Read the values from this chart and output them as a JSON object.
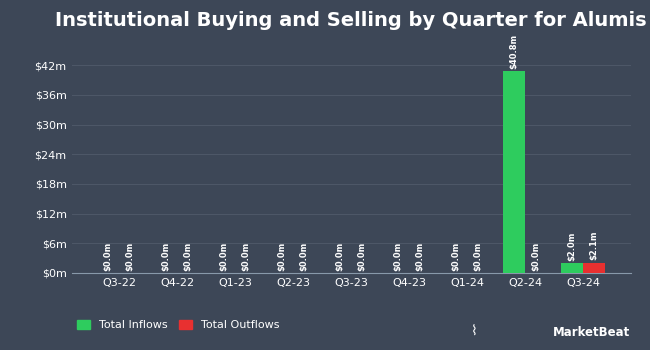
{
  "title": "Institutional Buying and Selling by Quarter for Alumis",
  "quarters": [
    "Q3-22",
    "Q4-22",
    "Q1-23",
    "Q2-23",
    "Q3-23",
    "Q4-23",
    "Q1-24",
    "Q2-24",
    "Q3-24"
  ],
  "inflows": [
    0.0,
    0.0,
    0.0,
    0.0,
    0.0,
    0.0,
    0.0,
    40.8,
    2.0
  ],
  "outflows": [
    0.0,
    0.0,
    0.0,
    0.0,
    0.0,
    0.0,
    0.0,
    0.0,
    2.1
  ],
  "inflow_labels": [
    "$0.0m",
    "$0.0m",
    "$0.0m",
    "$0.0m",
    "$0.0m",
    "$0.0m",
    "$0.0m",
    "$40.8m",
    "$2.0m"
  ],
  "outflow_labels": [
    "$0.0m",
    "$0.0m",
    "$0.0m",
    "$0.0m",
    "$0.0m",
    "$0.0m",
    "$0.0m",
    "$0.0m",
    "$2.1m"
  ],
  "inflow_color": "#2ecc5e",
  "outflow_color": "#e83030",
  "bg_color": "#3d4757",
  "plot_bg_color": "#3d4757",
  "grid_color": "#4d5767",
  "text_color": "#ffffff",
  "axis_line_color": "#8899aa",
  "ytick_labels": [
    "$0m",
    "$6m",
    "$12m",
    "$18m",
    "$24m",
    "$30m",
    "$36m",
    "$42m"
  ],
  "ytick_values": [
    0,
    6,
    12,
    18,
    24,
    30,
    36,
    42
  ],
  "ylim": [
    0,
    46
  ],
  "bar_width": 0.38,
  "legend_inflow": "Total Inflows",
  "legend_outflow": "Total Outflows",
  "title_fontsize": 14,
  "label_fontsize": 6,
  "tick_fontsize": 8,
  "legend_fontsize": 8,
  "marketbeat_text": "MarketBeat"
}
